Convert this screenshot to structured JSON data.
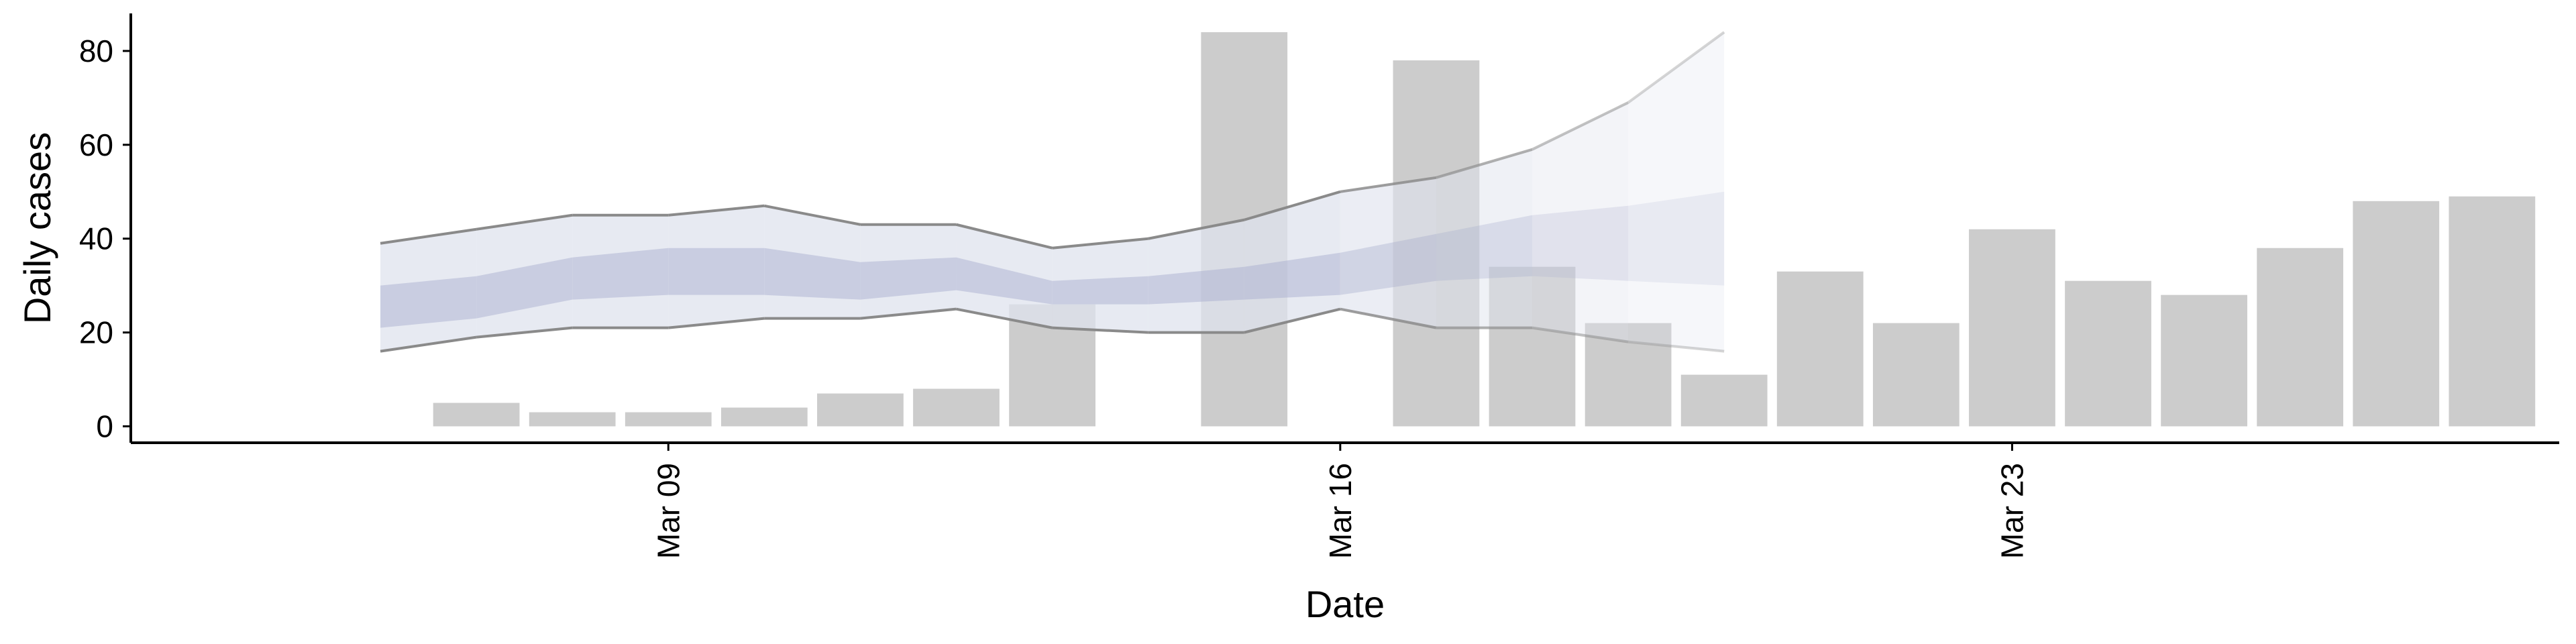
{
  "chart_data": {
    "type": "bar",
    "xlabel": "Date",
    "ylabel": "Daily cases",
    "ylim": [
      -3.5,
      88
    ],
    "yticks": [
      0,
      20,
      40,
      60,
      80
    ],
    "xticks": [
      {
        "date": "Mar 09",
        "day": 9
      },
      {
        "date": "Mar 16",
        "day": 16
      },
      {
        "date": "Mar 23",
        "day": 23
      }
    ],
    "x_unit": "day of March",
    "xlim": [
      3.4,
      28.7
    ],
    "grid": false,
    "legend": "none",
    "bars": [
      {
        "day": 7,
        "value": 5
      },
      {
        "day": 8,
        "value": 3
      },
      {
        "day": 9,
        "value": 3
      },
      {
        "day": 10,
        "value": 4
      },
      {
        "day": 11,
        "value": 7
      },
      {
        "day": 12,
        "value": 8
      },
      {
        "day": 13,
        "value": 26
      },
      {
        "day": 14,
        "value": 0
      },
      {
        "day": 15,
        "value": 84
      },
      {
        "day": 16,
        "value": 0
      },
      {
        "day": 17,
        "value": 78
      },
      {
        "day": 18,
        "value": 34
      },
      {
        "day": 19,
        "value": 22
      },
      {
        "day": 20,
        "value": 11
      },
      {
        "day": 21,
        "value": 33
      },
      {
        "day": 22,
        "value": 22
      },
      {
        "day": 23,
        "value": 42
      },
      {
        "day": 24,
        "value": 31
      },
      {
        "day": 25,
        "value": 28
      },
      {
        "day": 26,
        "value": 38
      },
      {
        "day": 27,
        "value": 48
      },
      {
        "day": 28,
        "value": 49
      }
    ],
    "forecast_band": {
      "days": [
        6,
        7,
        8,
        9,
        10,
        11,
        12,
        13,
        14,
        15,
        16,
        17,
        18,
        19,
        20
      ],
      "outer_low": [
        16,
        19,
        21,
        21,
        23,
        23,
        25,
        21,
        20,
        20,
        25,
        21,
        21,
        18,
        16
      ],
      "outer_high": [
        39,
        42,
        45,
        45,
        47,
        43,
        43,
        38,
        40,
        44,
        50,
        53,
        59,
        69,
        84
      ],
      "inner_low": [
        21,
        23,
        27,
        28,
        28,
        27,
        29,
        26,
        26,
        27,
        28,
        31,
        32,
        31,
        30
      ],
      "inner_high": [
        30,
        32,
        36,
        38,
        38,
        35,
        36,
        31,
        32,
        34,
        37,
        41,
        45,
        47,
        50
      ],
      "estimate_until_day": 16
    },
    "colors": {
      "bar": "#cccccc",
      "band_outer": "#dfe3ee",
      "band_inner": "#a4aacb",
      "bound_line": "#8a8a8a"
    }
  }
}
